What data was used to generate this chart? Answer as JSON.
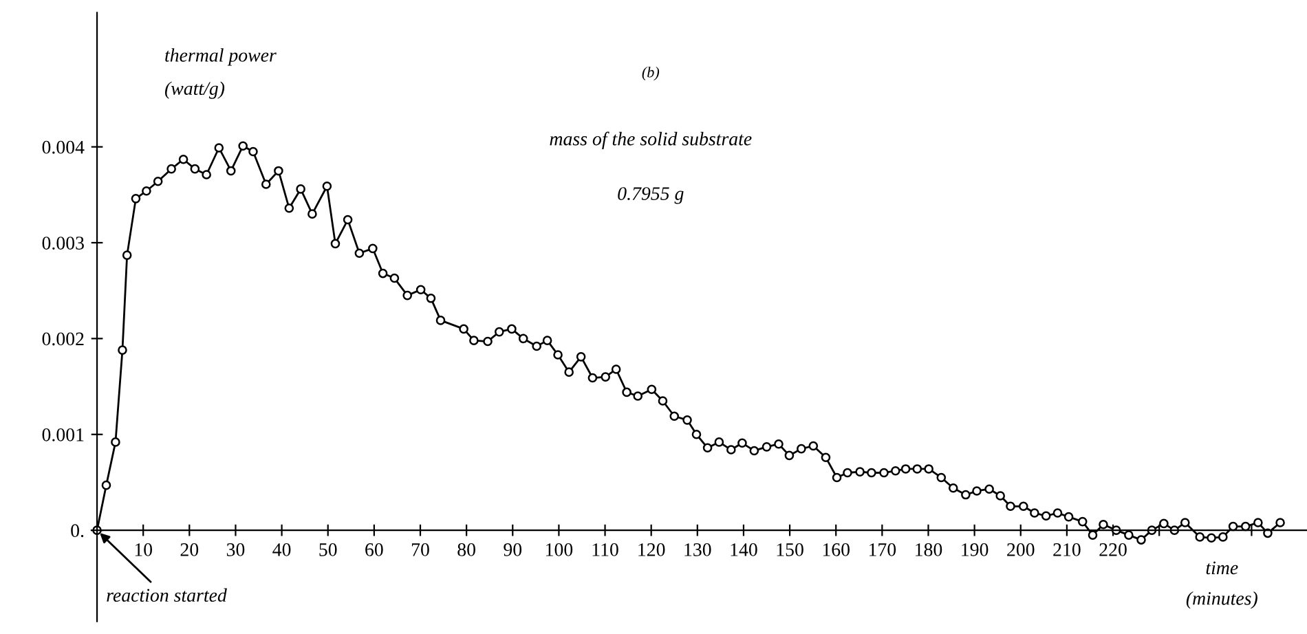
{
  "chart_data": {
    "type": "line",
    "ylabel": "thermal power\n(watt/g)",
    "xlabel": "time\n(minutes)",
    "annotations": [
      "(b)",
      "mass of the solid substrate",
      "0.7955 g",
      {
        "text": "reaction started",
        "x": 0,
        "y": 0
      }
    ],
    "x": [
      0,
      2.0,
      4.0,
      5.5,
      6.5,
      8.4,
      10.7,
      13.2,
      16.1,
      18.7,
      21.2,
      23.7,
      26.4,
      29.0,
      31.6,
      33.8,
      36.6,
      39.3,
      41.6,
      44.1,
      46.6,
      49.8,
      51.6,
      54.3,
      56.8,
      59.7,
      61.9,
      64.4,
      67.2,
      70.1,
      72.3,
      74.4,
      79.4,
      81.6,
      84.6,
      87.1,
      89.8,
      92.3,
      95.2,
      97.5,
      99.8,
      102.2,
      104.8,
      107.3,
      110.1,
      112.4,
      114.7,
      117.1,
      120.1,
      122.5,
      125.0,
      127.8,
      129.8,
      132.2,
      134.7,
      137.3,
      139.7,
      142.3,
      145.0,
      147.6,
      149.9,
      152.5,
      155.1,
      157.8,
      160.2,
      162.5,
      165.2,
      167.7,
      170.4,
      172.9,
      175.1,
      177.6,
      180.1,
      182.8,
      185.4,
      188.1,
      190.5,
      193.2,
      195.6,
      197.8,
      200.6,
      203.0,
      205.5,
      208.0,
      210.4,
      213.4,
      215.6,
      217.9,
      220.7,
      223.4,
      226.1,
      228.4,
      231.0,
      233.3,
      235.6,
      238.8,
      241.3,
      243.8,
      246.0,
      248.7,
      251.4,
      253.5,
      256.2
    ],
    "series": [
      {
        "color": "#000000",
        "values": [
          0,
          0.00047,
          0.00092,
          0.00188,
          0.00287,
          0.00346,
          0.00354,
          0.00364,
          0.00377,
          0.00387,
          0.00377,
          0.00371,
          0.00399,
          0.00375,
          0.00401,
          0.00395,
          0.00361,
          0.00375,
          0.00336,
          0.00356,
          0.0033,
          0.00359,
          0.00299,
          0.00324,
          0.00289,
          0.00294,
          0.00268,
          0.00263,
          0.00245,
          0.00251,
          0.00242,
          0.00219,
          0.0021,
          0.00198,
          0.00197,
          0.00207,
          0.0021,
          0.002,
          0.00192,
          0.00198,
          0.00183,
          0.00165,
          0.00181,
          0.00159,
          0.0016,
          0.00168,
          0.00144,
          0.0014,
          0.00147,
          0.00135,
          0.00119,
          0.00115,
          0.001,
          0.00086,
          0.00092,
          0.00084,
          0.00091,
          0.00083,
          0.00087,
          0.0009,
          0.00078,
          0.00085,
          0.00088,
          0.00076,
          0.00055,
          0.0006,
          0.00061,
          0.0006,
          0.0006,
          0.00062,
          0.00064,
          0.00064,
          0.00064,
          0.00055,
          0.00044,
          0.00037,
          0.00041,
          0.00043,
          0.00036,
          0.00025,
          0.00025,
          0.00018,
          0.00015,
          0.00018,
          0.00014,
          9e-05,
          -5e-05,
          6e-05,
          0,
          -5e-05,
          -0.0001,
          0,
          7e-05,
          0,
          8e-05,
          -7e-05,
          -8e-05,
          -7e-05,
          4e-05,
          4e-05,
          8e-05,
          -3e-05,
          8e-05
        ]
      }
    ],
    "xlim": [
      -1.2,
      262
    ],
    "ylim": [
      -0.00095,
      0.0054
    ],
    "xticks": [
      10,
      20,
      30,
      40,
      50,
      60,
      70,
      80,
      90,
      100,
      110,
      120,
      130,
      140,
      150,
      160,
      170,
      180,
      190,
      200,
      210,
      220,
      {
        "value": 230,
        "label": null
      },
      {
        "value": 250,
        "label": null
      }
    ],
    "yticks": [
      {
        "value": 0,
        "label": "0."
      },
      0.001,
      0.002,
      0.003,
      0.004
    ],
    "grid": false,
    "legend": false,
    "marker": "circle",
    "line_style": "solid"
  }
}
